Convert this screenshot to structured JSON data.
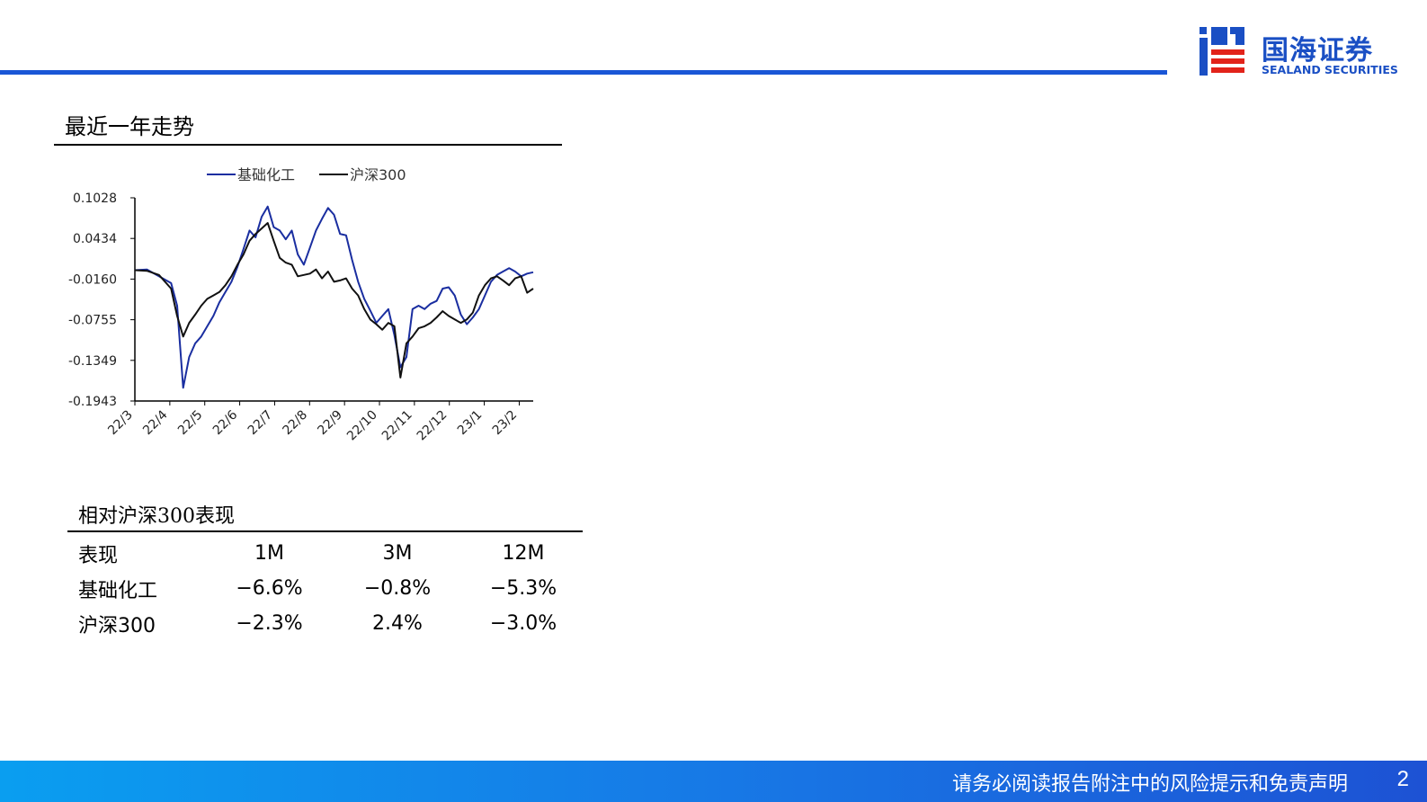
{
  "header": {
    "company_name": "国海证券",
    "company_name_en": "SEALAND SECURITIES",
    "brand_color": "#1a4fc4",
    "accent_red": "#e2231a"
  },
  "section": {
    "title": "最近一年走势"
  },
  "chart_data": {
    "type": "line",
    "legend_position": "top",
    "grid": false,
    "ylim": [
      -0.1943,
      0.1028
    ],
    "y_ticks": [
      "0.1028",
      "0.0434",
      "-0.0160",
      "-0.0755",
      "-0.1349",
      "-0.1943"
    ],
    "x_ticks": [
      "22/3",
      "22/4",
      "22/5",
      "22/6",
      "22/7",
      "22/8",
      "22/9",
      "22/10",
      "22/11",
      "22/12",
      "23/1",
      "23/2"
    ],
    "series": [
      {
        "name": "基础化工",
        "color": "#1a2ea0",
        "points": [
          [
            0,
            -0.003
          ],
          [
            2,
            -0.002
          ],
          [
            4,
            -0.012
          ],
          [
            6,
            -0.022
          ],
          [
            7,
            -0.055
          ],
          [
            8,
            -0.175
          ],
          [
            9,
            -0.13
          ],
          [
            10,
            -0.11
          ],
          [
            11,
            -0.1
          ],
          [
            12,
            -0.085
          ],
          [
            13,
            -0.07
          ],
          [
            14,
            -0.05
          ],
          [
            15,
            -0.035
          ],
          [
            16,
            -0.02
          ],
          [
            17,
            0.002
          ],
          [
            18,
            0.028
          ],
          [
            19,
            0.055
          ],
          [
            20,
            0.045
          ],
          [
            21,
            0.075
          ],
          [
            22,
            0.09
          ],
          [
            23,
            0.06
          ],
          [
            24,
            0.055
          ],
          [
            25,
            0.042
          ],
          [
            26,
            0.055
          ],
          [
            27,
            0.02
          ],
          [
            28,
            0.005
          ],
          [
            29,
            0.03
          ],
          [
            30,
            0.055
          ],
          [
            31,
            0.072
          ],
          [
            32,
            0.088
          ],
          [
            33,
            0.078
          ],
          [
            34,
            0.05
          ],
          [
            35,
            0.048
          ],
          [
            36,
            0.012
          ],
          [
            37,
            -0.02
          ],
          [
            38,
            -0.045
          ],
          [
            39,
            -0.062
          ],
          [
            40,
            -0.08
          ],
          [
            41,
            -0.07
          ],
          [
            42,
            -0.06
          ],
          [
            43,
            -0.098
          ],
          [
            44,
            -0.145
          ],
          [
            45,
            -0.13
          ],
          [
            46,
            -0.06
          ],
          [
            47,
            -0.055
          ],
          [
            48,
            -0.06
          ],
          [
            49,
            -0.052
          ],
          [
            50,
            -0.048
          ],
          [
            51,
            -0.03
          ],
          [
            52,
            -0.028
          ],
          [
            53,
            -0.04
          ],
          [
            54,
            -0.068
          ],
          [
            55,
            -0.082
          ],
          [
            56,
            -0.072
          ],
          [
            57,
            -0.06
          ],
          [
            58,
            -0.04
          ],
          [
            59,
            -0.02
          ],
          [
            60,
            -0.01
          ],
          [
            61,
            -0.005
          ],
          [
            62,
            0.0
          ],
          [
            63,
            -0.005
          ],
          [
            64,
            -0.012
          ],
          [
            65,
            -0.008
          ],
          [
            66,
            -0.006
          ]
        ]
      },
      {
        "name": "沪深300",
        "color": "#111111",
        "points": [
          [
            0,
            -0.003
          ],
          [
            2,
            -0.004
          ],
          [
            4,
            -0.01
          ],
          [
            6,
            -0.03
          ],
          [
            7,
            -0.07
          ],
          [
            8,
            -0.1
          ],
          [
            9,
            -0.08
          ],
          [
            10,
            -0.068
          ],
          [
            11,
            -0.055
          ],
          [
            12,
            -0.045
          ],
          [
            13,
            -0.04
          ],
          [
            14,
            -0.035
          ],
          [
            15,
            -0.025
          ],
          [
            16,
            -0.012
          ],
          [
            17,
            0.005
          ],
          [
            18,
            0.02
          ],
          [
            19,
            0.04
          ],
          [
            20,
            0.05
          ],
          [
            21,
            0.058
          ],
          [
            22,
            0.066
          ],
          [
            23,
            0.04
          ],
          [
            24,
            0.015
          ],
          [
            25,
            0.008
          ],
          [
            26,
            0.005
          ],
          [
            27,
            -0.012
          ],
          [
            28,
            -0.01
          ],
          [
            29,
            -0.008
          ],
          [
            30,
            -0.002
          ],
          [
            31,
            -0.015
          ],
          [
            32,
            -0.005
          ],
          [
            33,
            -0.02
          ],
          [
            34,
            -0.018
          ],
          [
            35,
            -0.015
          ],
          [
            36,
            -0.03
          ],
          [
            37,
            -0.04
          ],
          [
            38,
            -0.06
          ],
          [
            39,
            -0.075
          ],
          [
            40,
            -0.082
          ],
          [
            41,
            -0.09
          ],
          [
            42,
            -0.08
          ],
          [
            43,
            -0.085
          ],
          [
            44,
            -0.16
          ],
          [
            45,
            -0.11
          ],
          [
            46,
            -0.1
          ],
          [
            47,
            -0.088
          ],
          [
            48,
            -0.085
          ],
          [
            49,
            -0.08
          ],
          [
            50,
            -0.072
          ],
          [
            51,
            -0.063
          ],
          [
            52,
            -0.07
          ],
          [
            53,
            -0.075
          ],
          [
            54,
            -0.08
          ],
          [
            55,
            -0.075
          ],
          [
            56,
            -0.065
          ],
          [
            57,
            -0.04
          ],
          [
            58,
            -0.025
          ],
          [
            59,
            -0.015
          ],
          [
            60,
            -0.012
          ],
          [
            61,
            -0.018
          ],
          [
            62,
            -0.025
          ],
          [
            63,
            -0.015
          ],
          [
            64,
            -0.012
          ],
          [
            65,
            -0.036
          ],
          [
            66,
            -0.03
          ]
        ]
      }
    ]
  },
  "performance": {
    "title": "相对沪深300表现",
    "columns": [
      "表现",
      "1M",
      "3M",
      "12M"
    ],
    "rows": [
      [
        "基础化工",
        "−6.6%",
        "−0.8%",
        "−5.3%"
      ],
      [
        "沪深300",
        "−2.3%",
        "2.4%",
        "−3.0%"
      ]
    ]
  },
  "footer": {
    "disclaimer": "请务必阅读报告附注中的风险提示和免责声明",
    "page_number": "2"
  }
}
